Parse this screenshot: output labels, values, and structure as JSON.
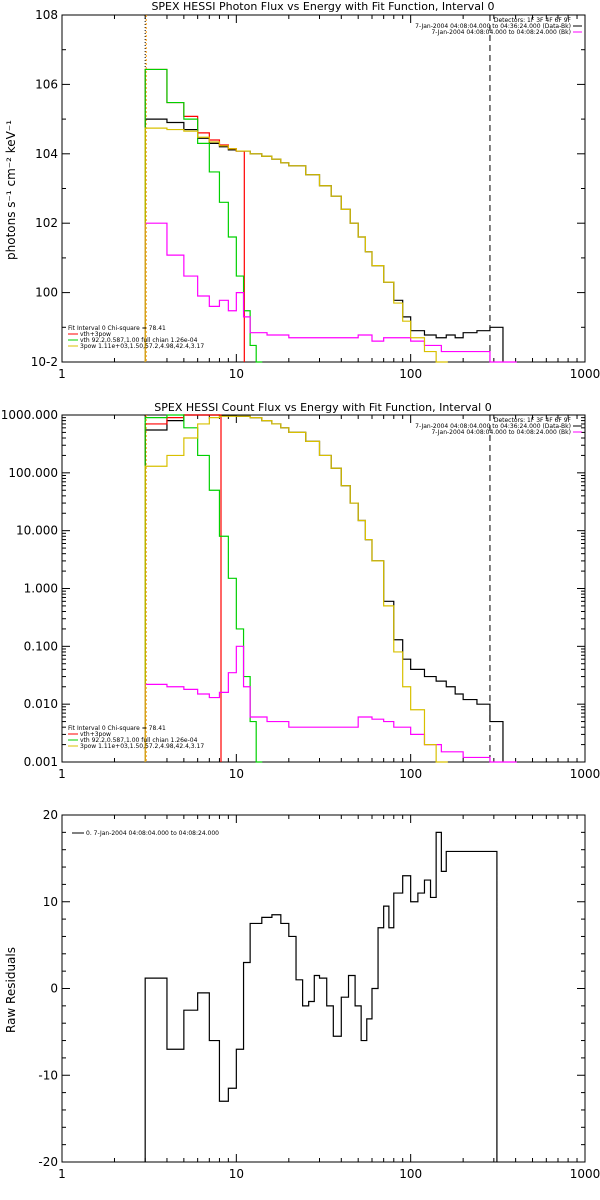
{
  "chart_data": [
    {
      "type": "line",
      "title": "SPEX HESSI Photon Flux vs Energy with Fit Function, Interval 0",
      "ylabel": "photons s⁻¹ cm⁻² keV⁻¹",
      "xscale": "log",
      "yscale": "log",
      "xlim": [
        1,
        1000
      ],
      "ylim": [
        0.01,
        100000000
      ],
      "xticks": [
        "1",
        "10",
        "100",
        "1000"
      ],
      "yticks": [
        "10-2",
        "100",
        "102",
        "104",
        "106",
        "108"
      ],
      "legend_top_right": [
        "Detectors: 1F 3F 4F 6F 9F",
        "7-Jan-2004 04:08:04.000 to 04:36:24.000 (Data-Bk)",
        "7-Jan-2004 04:08:04.000 to 04:08:24.000 (Bk)"
      ],
      "legend_bottom_left": [
        "Fit Interval 0   Chi-square = 78.41",
        "vth+3pow",
        "vth 92.2,0.587,1.00  full chian 1.26e-04",
        "3pow 1.11e+03,1.50,57.2,4.98,42.4,3.17"
      ],
      "xmarkers": [
        3,
        285
      ],
      "series": [
        {
          "color": "#000000",
          "x": [
            3,
            4,
            5,
            6,
            7,
            8,
            9,
            10,
            12,
            14,
            16,
            18,
            20,
            25,
            30,
            35,
            40,
            45,
            50,
            55,
            60,
            70,
            80,
            90,
            100,
            120,
            140,
            160,
            180,
            200,
            240,
            285
          ],
          "y": [
            100000,
            80000,
            50000,
            28000,
            20000,
            16000,
            13000,
            12000,
            10000,
            8500,
            7000,
            5500,
            4500,
            2500,
            1200,
            600,
            250,
            100,
            40,
            15,
            6,
            2,
            0.6,
            0.2,
            0.08,
            0.06,
            0.05,
            0.06,
            0.05,
            0.07,
            0.08,
            0.1
          ]
        },
        {
          "color": "#ff0000",
          "x": [
            3,
            4,
            5,
            6,
            7,
            8,
            9,
            10
          ],
          "y": [
            2700000,
            300000,
            120000,
            40000,
            25000,
            18000,
            14000,
            12000
          ]
        },
        {
          "color": "#00d000",
          "x": [
            3,
            4,
            5,
            6,
            7,
            8,
            9,
            10,
            11,
            12,
            13
          ],
          "y": [
            2700000,
            300000,
            100000,
            20000,
            3000,
            400,
            40,
            3,
            0.3,
            0.03,
            0.01
          ]
        },
        {
          "color": "#ff00ff",
          "x": [
            3,
            4,
            5,
            6,
            7,
            8,
            9,
            10,
            11,
            12,
            15,
            20,
            30,
            50,
            60,
            70,
            80,
            100,
            120,
            150,
            200,
            285
          ],
          "y": [
            100,
            12,
            3,
            0.8,
            0.4,
            0.6,
            0.3,
            1,
            0.2,
            0.07,
            0.06,
            0.05,
            0.05,
            0.06,
            0.04,
            0.05,
            0.05,
            0.04,
            0.03,
            0.02,
            0.02,
            0.01
          ]
        },
        {
          "color": "#d8c000",
          "x": [
            3,
            4,
            5,
            6,
            7,
            8,
            9,
            10,
            12,
            14,
            16,
            18,
            20,
            25,
            30,
            35,
            40,
            45,
            50,
            55,
            60,
            70,
            80,
            90,
            100,
            120,
            140
          ],
          "y": [
            55000,
            50000,
            45000,
            30000,
            22000,
            17000,
            14000,
            12000,
            10000,
            8500,
            7000,
            5500,
            4500,
            2500,
            1200,
            600,
            250,
            100,
            40,
            15,
            6,
            2,
            0.5,
            0.15,
            0.05,
            0.02,
            0.01
          ]
        }
      ]
    },
    {
      "type": "line",
      "title": "SPEX HESSI Count Flux vs Energy with Fit Function, Interval 0",
      "xscale": "log",
      "yscale": "log",
      "xlim": [
        1,
        1000
      ],
      "ylim": [
        0.001,
        1000
      ],
      "xticks": [
        "1",
        "10",
        "100",
        "1000"
      ],
      "yticks": [
        "0.001",
        "0.010",
        "0.100",
        "1.000",
        "10.000",
        "100.000",
        "1000.000"
      ],
      "legend_top_right": [
        "Detectors: 1F 3F 4F 6F 9F",
        "7-Jan-2004 04:08:04.000 to 04:36:24.000 (Data-Bk)",
        "7-Jan-2004 04:08:04.000 to 04:08:24.000 (Bk)"
      ],
      "legend_bottom_left": [
        "Fit Interval 0   Chi-square = 78.41",
        "vth+3pow",
        "vth 92.2,0.587,1.00  full chian 1.26e-04",
        "3pow 1.11e+03,1.50,57.2,4.98,42.4,3.17"
      ],
      "xmarkers": [
        3,
        285
      ],
      "series": [
        {
          "color": "#000000",
          "x": [
            3,
            4,
            5,
            6,
            7,
            8,
            10,
            12,
            14,
            16,
            18,
            20,
            25,
            30,
            35,
            40,
            45,
            50,
            55,
            60,
            70,
            80,
            90,
            100,
            120,
            140,
            160,
            180,
            200,
            240,
            285
          ],
          "y": [
            550,
            800,
            1000,
            1000,
            1000,
            980,
            950,
            900,
            800,
            700,
            600,
            500,
            350,
            200,
            120,
            60,
            30,
            15,
            7,
            3,
            0.6,
            0.13,
            0.06,
            0.04,
            0.03,
            0.025,
            0.02,
            0.015,
            0.012,
            0.01,
            0.005
          ]
        },
        {
          "color": "#ff0000",
          "x": [
            3,
            4,
            5,
            6,
            7
          ],
          "y": [
            700,
            900,
            1000,
            1000,
            1000
          ]
        },
        {
          "color": "#00d000",
          "x": [
            3,
            4,
            5,
            6,
            7,
            8,
            9,
            10,
            11,
            12,
            13
          ],
          "y": [
            900,
            1000,
            600,
            200,
            50,
            8,
            1.5,
            0.2,
            0.03,
            0.005,
            0.001
          ]
        },
        {
          "color": "#ff00ff",
          "x": [
            3,
            4,
            5,
            6,
            7,
            8,
            9,
            10,
            11,
            12,
            15,
            20,
            30,
            50,
            60,
            70,
            80,
            100,
            120,
            150,
            200,
            285
          ],
          "y": [
            0.022,
            0.02,
            0.018,
            0.015,
            0.013,
            0.016,
            0.035,
            0.1,
            0.02,
            0.006,
            0.005,
            0.004,
            0.004,
            0.006,
            0.0055,
            0.005,
            0.004,
            0.003,
            0.002,
            0.0015,
            0.0012,
            0.001
          ]
        },
        {
          "color": "#d8c000",
          "x": [
            3,
            4,
            5,
            6,
            7,
            8,
            10,
            12,
            14,
            16,
            18,
            20,
            25,
            30,
            35,
            40,
            45,
            50,
            55,
            60,
            70,
            80,
            90,
            100,
            120,
            140
          ],
          "y": [
            130,
            200,
            400,
            700,
            900,
            950,
            950,
            900,
            800,
            700,
            600,
            500,
            350,
            200,
            120,
            60,
            30,
            15,
            7,
            3,
            0.5,
            0.08,
            0.02,
            0.008,
            0.002,
            0.001
          ]
        }
      ]
    },
    {
      "type": "line",
      "title": "",
      "ylabel": "Raw Residuals",
      "xscale": "log",
      "yscale": "linear",
      "xlim": [
        1,
        1000
      ],
      "ylim": [
        -20,
        20
      ],
      "xticks": [
        "1",
        "10",
        "100",
        "1000"
      ],
      "yticks": [
        "-20",
        "-10",
        "0",
        "10",
        "20"
      ],
      "legend_top_right": [],
      "legend": [
        "0.  7-Jan-2004 04:08:04.000 to 04:08:24.000"
      ],
      "series": [
        {
          "color": "#000000",
          "x": [
            3,
            4,
            5,
            6,
            7,
            8,
            9,
            10,
            11,
            12,
            14,
            16,
            18,
            20,
            22,
            24,
            26,
            28,
            30,
            33,
            36,
            40,
            44,
            48,
            52,
            56,
            60,
            65,
            70,
            75,
            80,
            90,
            100,
            110,
            120,
            130,
            140,
            150,
            160,
            170,
            180,
            190,
            200,
            220,
            240,
            260,
            285
          ],
          "y": [
            1.2,
            -7,
            -2.5,
            -0.5,
            -6,
            -13,
            -11.5,
            -7,
            3,
            7.5,
            8.2,
            8.5,
            7.5,
            6,
            1,
            -2,
            -1.5,
            1.5,
            1.2,
            -2,
            -5.5,
            -1,
            1.5,
            -2,
            -6,
            -3.5,
            0,
            7,
            9.5,
            7,
            11,
            13,
            10,
            11,
            12.5,
            10.5,
            18,
            13.5,
            15.8,
            15.8,
            15.8,
            15.8,
            15.8,
            15.8,
            15.8,
            15.8,
            15.8
          ]
        }
      ]
    }
  ]
}
